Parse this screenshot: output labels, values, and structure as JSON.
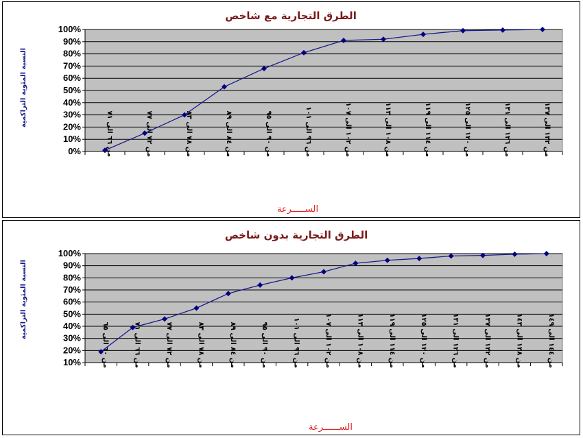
{
  "chart_data": [
    {
      "type": "line",
      "title": "الطرق التجارية مع شاخص",
      "xlabel": "الســـــرعة",
      "ylabel": "النسبة المئوية التراكمية",
      "ylim": [
        0,
        100
      ],
      "yticks": [
        "0%",
        "10%",
        "20%",
        "30%",
        "40%",
        "50%",
        "60%",
        "70%",
        "80%",
        "90%",
        "100%"
      ],
      "grid": true,
      "categories": [
        "من ٦٦ الى ٧١",
        "من ٧٢ الى ٧٧",
        "من ٧٨ الى ٨٣",
        "من ٨٤ الى ٨٩",
        "من ٩٠ الى ٩٥",
        "من ٩٦ الى ١٠١",
        "من ١٠٢ الى ١٠٧",
        "من ١٠٨ الى ١١٣",
        "من ١١٤ الى ١١٩",
        "من ١٢٠ الى ١٢٥",
        "من ١٢٦ الى ١٣١",
        "من ١٣٢ الى ١٣٧"
      ],
      "values": [
        1,
        15,
        30,
        53,
        68,
        81,
        91,
        92,
        96,
        99,
        99.5,
        100
      ],
      "colors": {
        "plot_bg": "#c0c0c0",
        "line": "#1a1a8c",
        "marker": "#000080"
      }
    },
    {
      "type": "line",
      "title": "الطرق التجارية بدون شاخص",
      "xlabel": "الســــــرعة",
      "ylabel": "النسبة المئوية التراكمية",
      "ylim": [
        10,
        100
      ],
      "yticks": [
        "10%",
        "20%",
        "30%",
        "40%",
        "50%",
        "60%",
        "70%",
        "80%",
        "90%",
        "100%"
      ],
      "grid": true,
      "categories": [
        "من ٦٠ الى ٦٥",
        "من ٦٦ الى ٧١",
        "من ٧٢ الى ٧٧",
        "من ٧٨ الى ٨٣",
        "من ٨٤ الى ٨٩",
        "من ٩٠ الى ٩٥",
        "من ٩٦ الى ١٠١",
        "من ١٠٢ الى ١٠٧",
        "من ١٠٨ الى ١١٣",
        "من ١١٤ الى ١١٩",
        "من ١٢٠ الى ١٢٥",
        "من ١٢٦ الى ١٣١",
        "من ١٣٢ الى ١٣٧",
        "من ١٣٨ الى ١٤٣",
        "من ١٤٤ الى ١٤٩"
      ],
      "values": [
        19,
        39,
        46,
        55,
        67,
        74,
        80,
        85,
        92,
        94.5,
        96,
        98,
        98.5,
        99.5,
        100
      ],
      "colors": {
        "plot_bg": "#c0c0c0",
        "line": "#1a1a8c",
        "marker": "#000080"
      }
    }
  ]
}
